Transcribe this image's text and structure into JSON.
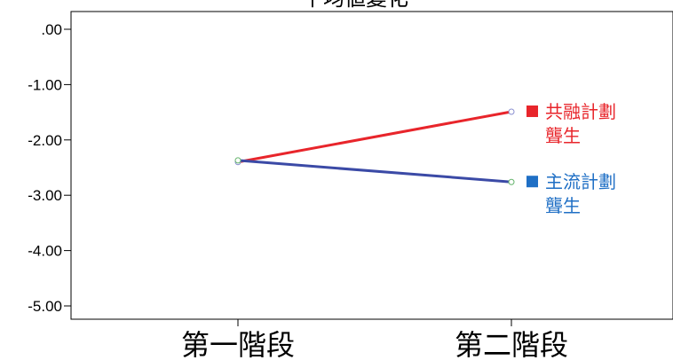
{
  "chart_data": {
    "type": "line",
    "title": "平均値變化",
    "categories": [
      "第一階段",
      "第二階段"
    ],
    "ylim": [
      -5.0,
      0.0
    ],
    "yticks": [
      ".00",
      "-1.00",
      "-2.00",
      "-3.00",
      "-4.00",
      "-5.00"
    ],
    "ytick_values": [
      0,
      -1,
      -2,
      -3,
      -4,
      -5
    ],
    "grid": false,
    "legend_placement": "right, at line ends",
    "series": [
      {
        "name": "共融計劃聾生",
        "name_lines": [
          "共融計劃",
          "聾生"
        ],
        "color": "#e8252b",
        "values": [
          -2.4,
          -1.49
        ]
      },
      {
        "name": "主流計劃聾生",
        "name_lines": [
          "主流計劃",
          "聾生"
        ],
        "color": "#3b4aa6",
        "legend_color": "#1f6fc5",
        "values": [
          -2.37,
          -2.76
        ]
      }
    ]
  }
}
